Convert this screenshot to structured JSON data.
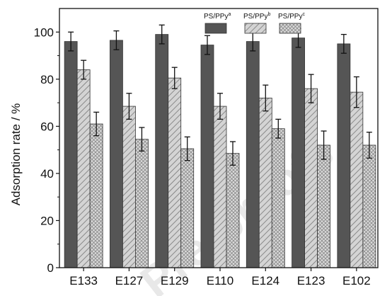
{
  "chart_data": {
    "type": "bar",
    "title": "",
    "xlabel": "",
    "ylabel": "Adsorption rate / %",
    "ylim": [
      0,
      110
    ],
    "yticks": [
      0,
      20,
      40,
      60,
      80,
      100
    ],
    "categories": [
      "E133",
      "E127",
      "E129",
      "E110",
      "E124",
      "E123",
      "E102"
    ],
    "series": [
      {
        "name": "PS/PPy",
        "sup": "a",
        "fill": "#555555",
        "pattern": "solid",
        "values": [
          96,
          96.5,
          99,
          94.5,
          96,
          97.5,
          95
        ],
        "errors": [
          4,
          4,
          4,
          4,
          4,
          4,
          4
        ]
      },
      {
        "name": "PS/PPy",
        "sup": "b",
        "fill": "#d0d0d0",
        "pattern": "diagonal",
        "values": [
          84,
          68.5,
          80.5,
          68.5,
          72,
          76,
          74.5
        ],
        "errors": [
          4,
          5.5,
          4.5,
          5.5,
          5.5,
          6,
          6.5
        ]
      },
      {
        "name": "PS/PPy",
        "sup": "c",
        "fill": "#d8d8d8",
        "pattern": "crosshatch",
        "values": [
          61,
          54.5,
          50.5,
          48.5,
          59,
          52,
          52
        ],
        "errors": [
          5,
          5,
          5,
          5,
          4,
          6,
          5.5
        ]
      }
    ],
    "legend": "top-right",
    "grid": false
  },
  "watermark": "Pre-proofs"
}
